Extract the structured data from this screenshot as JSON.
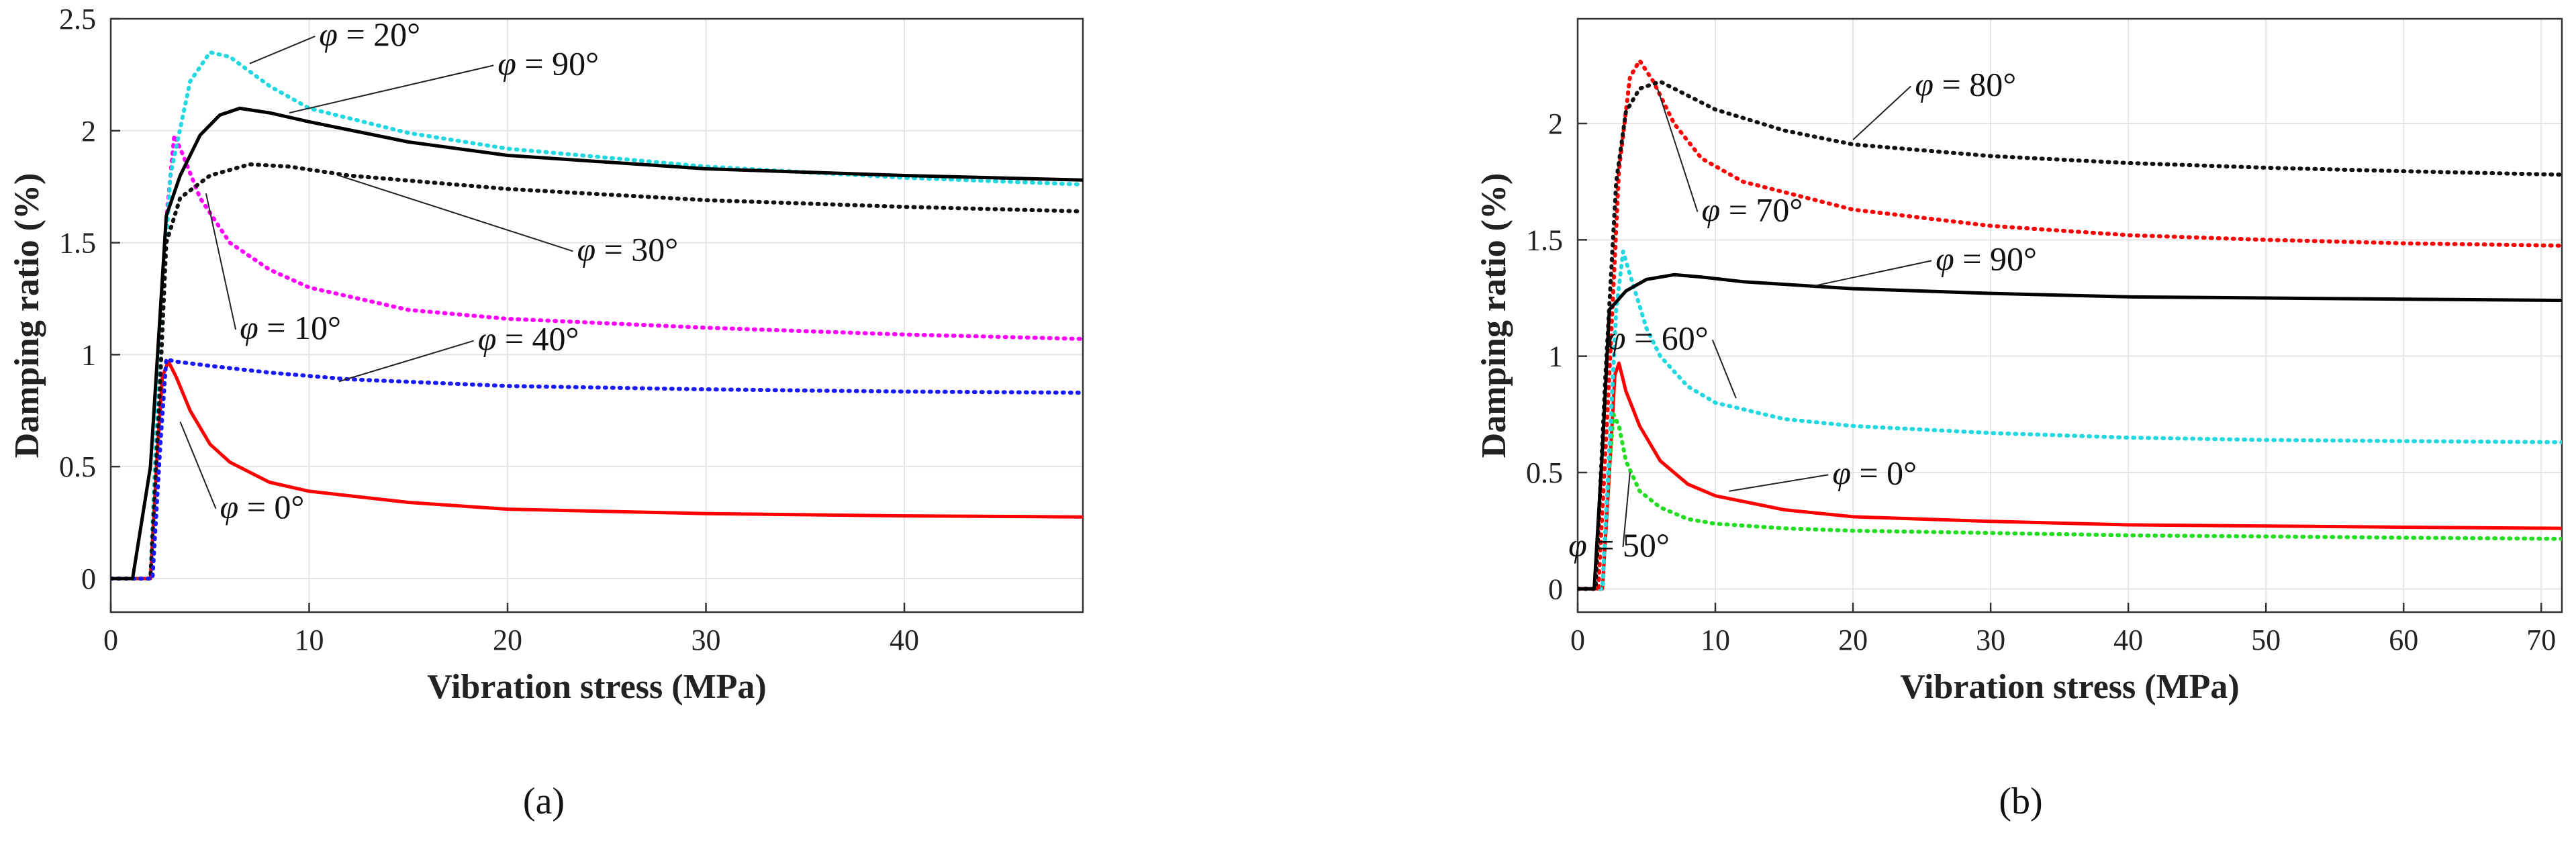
{
  "chart_data": [
    {
      "id": "a",
      "type": "line",
      "caption": "a",
      "xlabel": "Vibration stress (MPa)",
      "ylabel": "Damping ratio (%)",
      "xlim": [
        0,
        49
      ],
      "ylim": [
        -0.15,
        2.5
      ],
      "xticks": [
        0,
        10,
        20,
        30,
        40
      ],
      "yticks": [
        0,
        0.5,
        1,
        1.5,
        2,
        2.5
      ],
      "grid": true,
      "series": [
        {
          "name": "φ = 0°",
          "label": "φ = 0°",
          "color": "#ff0000",
          "dash": "solid",
          "width": 5,
          "points": [
            [
              0,
              0
            ],
            [
              2.0,
              0
            ],
            [
              2.3,
              0.5
            ],
            [
              2.6,
              0.9
            ],
            [
              2.9,
              0.97
            ],
            [
              3.3,
              0.9
            ],
            [
              4,
              0.75
            ],
            [
              5,
              0.6
            ],
            [
              6,
              0.52
            ],
            [
              8,
              0.43
            ],
            [
              10,
              0.39
            ],
            [
              15,
              0.34
            ],
            [
              20,
              0.31
            ],
            [
              30,
              0.29
            ],
            [
              40,
              0.28
            ],
            [
              49,
              0.275
            ]
          ]
        },
        {
          "name": "φ = 10°",
          "label": "φ = 10°",
          "color": "#ff00ff",
          "dash": "dot",
          "width": 6,
          "points": [
            [
              0,
              0
            ],
            [
              2.0,
              0
            ],
            [
              2.4,
              0.8
            ],
            [
              2.8,
              1.6
            ],
            [
              3.2,
              1.98
            ],
            [
              3.6,
              1.9
            ],
            [
              4.5,
              1.7
            ],
            [
              6,
              1.5
            ],
            [
              8,
              1.38
            ],
            [
              10,
              1.3
            ],
            [
              15,
              1.2
            ],
            [
              20,
              1.16
            ],
            [
              30,
              1.12
            ],
            [
              40,
              1.09
            ],
            [
              49,
              1.07
            ]
          ]
        },
        {
          "name": "φ = 20°",
          "label": "φ = 20°",
          "color": "#22d8e0",
          "dash": "dot",
          "width": 6,
          "points": [
            [
              0,
              0
            ],
            [
              2.0,
              0
            ],
            [
              2.4,
              0.9
            ],
            [
              3,
              1.8
            ],
            [
              4,
              2.22
            ],
            [
              5,
              2.35
            ],
            [
              6,
              2.33
            ],
            [
              8,
              2.2
            ],
            [
              10,
              2.1
            ],
            [
              15,
              1.99
            ],
            [
              20,
              1.92
            ],
            [
              30,
              1.84
            ],
            [
              40,
              1.79
            ],
            [
              49,
              1.76
            ]
          ]
        },
        {
          "name": "φ = 30°",
          "label": "φ = 30°",
          "color": "#111111",
          "dash": "dot",
          "width": 6,
          "points": [
            [
              0,
              0
            ],
            [
              2.0,
              0
            ],
            [
              2.4,
              0.7
            ],
            [
              2.8,
              1.5
            ],
            [
              3.5,
              1.7
            ],
            [
              5,
              1.8
            ],
            [
              7,
              1.85
            ],
            [
              9,
              1.84
            ],
            [
              12,
              1.8
            ],
            [
              20,
              1.74
            ],
            [
              30,
              1.69
            ],
            [
              40,
              1.66
            ],
            [
              49,
              1.64
            ]
          ]
        },
        {
          "name": "φ = 40°",
          "label": "φ = 40°",
          "color": "#1a1aff",
          "dash": "dot",
          "width": 6,
          "points": [
            [
              0,
              0
            ],
            [
              2.1,
              0
            ],
            [
              2.5,
              0.6
            ],
            [
              2.8,
              0.98
            ],
            [
              3.2,
              0.97
            ],
            [
              5,
              0.95
            ],
            [
              8,
              0.92
            ],
            [
              12,
              0.89
            ],
            [
              20,
              0.86
            ],
            [
              30,
              0.845
            ],
            [
              40,
              0.835
            ],
            [
              49,
              0.83
            ]
          ]
        },
        {
          "name": "φ = 90°",
          "label": "φ = 90°",
          "color": "#000000",
          "dash": "solid",
          "width": 5,
          "points": [
            [
              0,
              0
            ],
            [
              1.1,
              0
            ],
            [
              2.0,
              0.5
            ],
            [
              2.5,
              1.2
            ],
            [
              2.8,
              1.62
            ],
            [
              3.5,
              1.8
            ],
            [
              4.5,
              1.98
            ],
            [
              5.5,
              2.07
            ],
            [
              6.5,
              2.1
            ],
            [
              8,
              2.08
            ],
            [
              10,
              2.04
            ],
            [
              15,
              1.95
            ],
            [
              20,
              1.89
            ],
            [
              30,
              1.83
            ],
            [
              40,
              1.8
            ],
            [
              49,
              1.78
            ]
          ]
        }
      ],
      "annotations": [
        {
          "text": "φ = 20°",
          "series": "φ = 20°"
        },
        {
          "text": "φ = 90°",
          "series": "φ = 90°"
        },
        {
          "text": "φ = 30°",
          "series": "φ = 30°"
        },
        {
          "text": "φ = 10°",
          "series": "φ = 10°"
        },
        {
          "text": "φ = 40°",
          "series": "φ = 40°"
        },
        {
          "text": "φ = 0°",
          "series": "φ = 0°"
        }
      ]
    },
    {
      "id": "b",
      "type": "line",
      "caption": "b",
      "xlabel": "Vibration stress (MPa)",
      "ylabel": "Damping ratio (%)",
      "xlim": [
        0,
        71.5
      ],
      "ylim": [
        -0.1,
        2.45
      ],
      "xticks": [
        0,
        10,
        20,
        30,
        40,
        50,
        60,
        70
      ],
      "yticks": [
        0,
        0.5,
        1,
        1.5,
        2
      ],
      "grid": true,
      "series": [
        {
          "name": "φ = 0°",
          "label": "φ = 0°",
          "color": "#ff0000",
          "dash": "solid",
          "width": 5,
          "points": [
            [
              0,
              0
            ],
            [
              1.8,
              0
            ],
            [
              2.3,
              0.5
            ],
            [
              2.7,
              0.92
            ],
            [
              3,
              0.97
            ],
            [
              3.5,
              0.85
            ],
            [
              4.5,
              0.7
            ],
            [
              6,
              0.55
            ],
            [
              8,
              0.45
            ],
            [
              10,
              0.4
            ],
            [
              15,
              0.34
            ],
            [
              20,
              0.31
            ],
            [
              30,
              0.29
            ],
            [
              40,
              0.275
            ],
            [
              50,
              0.27
            ],
            [
              60,
              0.265
            ],
            [
              71.5,
              0.26
            ]
          ]
        },
        {
          "name": "φ = 50°",
          "label": "φ = 50°",
          "color": "#22dd22",
          "dash": "dot",
          "width": 6,
          "points": [
            [
              0,
              0
            ],
            [
              1.8,
              0
            ],
            [
              2.2,
              0.45
            ],
            [
              2.6,
              0.75
            ],
            [
              3,
              0.7
            ],
            [
              3.5,
              0.55
            ],
            [
              4.5,
              0.42
            ],
            [
              6,
              0.35
            ],
            [
              8,
              0.3
            ],
            [
              10,
              0.28
            ],
            [
              15,
              0.26
            ],
            [
              20,
              0.25
            ],
            [
              30,
              0.24
            ],
            [
              40,
              0.23
            ],
            [
              50,
              0.225
            ],
            [
              60,
              0.22
            ],
            [
              71.5,
              0.215
            ]
          ]
        },
        {
          "name": "φ = 60°",
          "label": "φ = 60°",
          "color": "#22d8e0",
          "dash": "dot",
          "width": 6,
          "points": [
            [
              0,
              0
            ],
            [
              1.8,
              0
            ],
            [
              2.3,
              0.6
            ],
            [
              2.8,
              1.2
            ],
            [
              3.3,
              1.45
            ],
            [
              3.8,
              1.35
            ],
            [
              5,
              1.12
            ],
            [
              6,
              1.0
            ],
            [
              8,
              0.87
            ],
            [
              10,
              0.8
            ],
            [
              15,
              0.73
            ],
            [
              20,
              0.7
            ],
            [
              30,
              0.67
            ],
            [
              40,
              0.65
            ],
            [
              50,
              0.64
            ],
            [
              60,
              0.635
            ],
            [
              71.5,
              0.63
            ]
          ]
        },
        {
          "name": "φ = 70°",
          "label": "φ = 70°",
          "color": "#ff0000",
          "dash": "dot",
          "width": 6,
          "points": [
            [
              0,
              0
            ],
            [
              1.5,
              0
            ],
            [
              2.2,
              0.8
            ],
            [
              3,
              1.8
            ],
            [
              3.8,
              2.2
            ],
            [
              4.5,
              2.27
            ],
            [
              5.5,
              2.18
            ],
            [
              7,
              2.0
            ],
            [
              9,
              1.85
            ],
            [
              12,
              1.75
            ],
            [
              20,
              1.63
            ],
            [
              30,
              1.56
            ],
            [
              40,
              1.52
            ],
            [
              50,
              1.5
            ],
            [
              60,
              1.485
            ],
            [
              71.5,
              1.475
            ]
          ]
        },
        {
          "name": "φ = 80°",
          "label": "φ = 80°",
          "color": "#111111",
          "dash": "dot",
          "width": 6,
          "points": [
            [
              0,
              0
            ],
            [
              1.3,
              0
            ],
            [
              2,
              0.9
            ],
            [
              2.8,
              1.75
            ],
            [
              3.5,
              2.05
            ],
            [
              4.5,
              2.15
            ],
            [
              6,
              2.18
            ],
            [
              8,
              2.12
            ],
            [
              10,
              2.06
            ],
            [
              15,
              1.97
            ],
            [
              20,
              1.91
            ],
            [
              30,
              1.86
            ],
            [
              40,
              1.83
            ],
            [
              50,
              1.81
            ],
            [
              60,
              1.795
            ],
            [
              71.5,
              1.78
            ]
          ]
        },
        {
          "name": "φ = 90°",
          "label": "φ = 90°",
          "color": "#000000",
          "dash": "solid",
          "width": 5,
          "points": [
            [
              0,
              0
            ],
            [
              1.2,
              0
            ],
            [
              1.8,
              0.6
            ],
            [
              2.3,
              1.2
            ],
            [
              3.5,
              1.28
            ],
            [
              5,
              1.33
            ],
            [
              7,
              1.35
            ],
            [
              9,
              1.34
            ],
            [
              12,
              1.32
            ],
            [
              20,
              1.29
            ],
            [
              30,
              1.27
            ],
            [
              40,
              1.255
            ],
            [
              50,
              1.25
            ],
            [
              60,
              1.245
            ],
            [
              71.5,
              1.24
            ]
          ]
        }
      ],
      "annotations": [
        {
          "text": "φ = 80°",
          "series": "φ = 80°"
        },
        {
          "text": "φ = 70°",
          "series": "φ = 70°"
        },
        {
          "text": "φ = 90°",
          "series": "φ = 90°"
        },
        {
          "text": "φ = 60°",
          "series": "φ = 60°"
        },
        {
          "text": "φ = 0°",
          "series": "φ = 0°"
        },
        {
          "text": "φ = 50°",
          "series": "φ = 50°"
        }
      ]
    }
  ],
  "captions": {
    "a": "(a)",
    "b": "(b)"
  }
}
